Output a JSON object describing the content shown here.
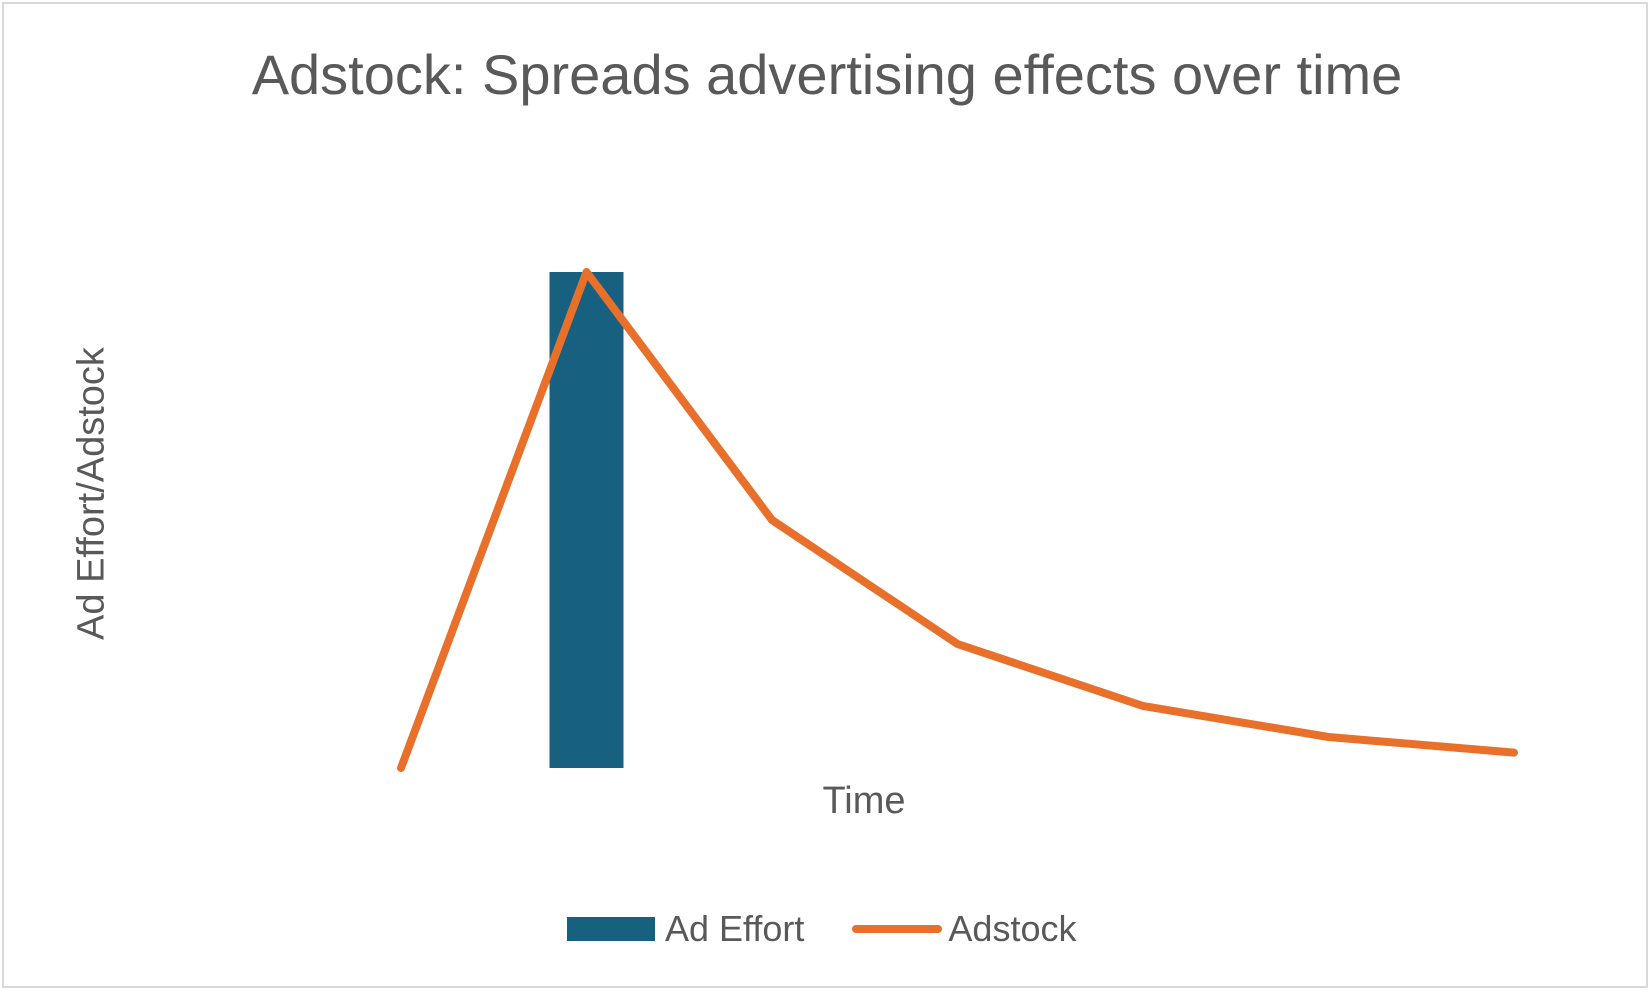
{
  "chart_data": {
    "type": "bar+line",
    "title": "Adstock: Spreads advertising effects over time",
    "xlabel": "Time",
    "ylabel": "Ad Effort/Adstock",
    "x": [
      0,
      1,
      2,
      3,
      4,
      5,
      6
    ],
    "series": [
      {
        "name": "Ad Effort",
        "kind": "bar",
        "color": "#17607f",
        "values": [
          0,
          100,
          0,
          0,
          0,
          0,
          0
        ]
      },
      {
        "name": "Adstock",
        "kind": "line",
        "color": "#e8702a",
        "values": [
          0,
          100,
          50,
          25,
          12.5,
          6.25,
          3.1
        ]
      }
    ],
    "ylim": [
      0,
      100
    ],
    "grid": false,
    "legend": "bottom-center",
    "axis_ticks_visible": false
  }
}
